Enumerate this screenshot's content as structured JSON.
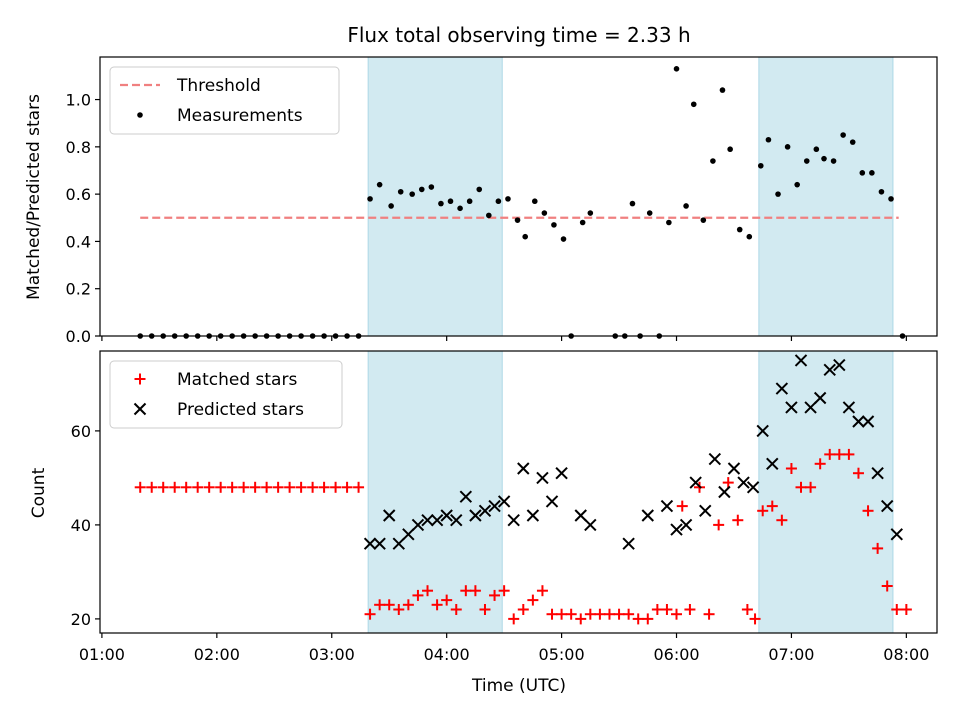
{
  "title": "Flux total observing time = 2.33 h",
  "xlabel": "Time (UTC)",
  "x_tick_labels": [
    "01:00",
    "02:00",
    "03:00",
    "04:00",
    "05:00",
    "06:00",
    "07:00",
    "08:00"
  ],
  "colors": {
    "threshold": "#f08080",
    "measurements": "#000000",
    "matched": "#ff0000",
    "predicted": "#000000",
    "highlight": "#add8e6"
  },
  "chart_data": [
    {
      "type": "scatter",
      "ylabel": "Matched/Predicted stars",
      "xlim": [
        "00:59",
        "08:16"
      ],
      "ylim": [
        0,
        1.18
      ],
      "y_ticks": [
        "0.0",
        "0.2",
        "0.4",
        "0.6",
        "0.8",
        "1.0"
      ],
      "legend": {
        "placement": "top-left",
        "entries": [
          "Threshold",
          "Measurements"
        ]
      },
      "highlight_spans": [
        [
          "03:19",
          "04:29"
        ],
        [
          "06:43",
          "07:53"
        ]
      ],
      "threshold": {
        "name": "Threshold",
        "y": 0.5,
        "x_range": [
          "01:20",
          "07:56"
        ]
      },
      "series": [
        {
          "name": "Measurements",
          "points": [
            [
              "01:20",
              0
            ],
            [
              "01:26",
              0
            ],
            [
              "01:32",
              0
            ],
            [
              "01:38",
              0
            ],
            [
              "01:44",
              0
            ],
            [
              "01:50",
              0
            ],
            [
              "01:56",
              0
            ],
            [
              "02:02",
              0
            ],
            [
              "02:08",
              0
            ],
            [
              "02:14",
              0
            ],
            [
              "02:20",
              0
            ],
            [
              "02:26",
              0
            ],
            [
              "02:32",
              0
            ],
            [
              "02:38",
              0
            ],
            [
              "02:44",
              0
            ],
            [
              "02:50",
              0
            ],
            [
              "02:56",
              0
            ],
            [
              "03:02",
              0
            ],
            [
              "03:08",
              0
            ],
            [
              "03:14",
              0
            ],
            [
              "03:20",
              0.58
            ],
            [
              "03:25",
              0.64
            ],
            [
              "03:31",
              0.55
            ],
            [
              "03:36",
              0.61
            ],
            [
              "03:42",
              0.6
            ],
            [
              "03:47",
              0.62
            ],
            [
              "03:52",
              0.63
            ],
            [
              "03:57",
              0.56
            ],
            [
              "04:02",
              0.57
            ],
            [
              "04:07",
              0.54
            ],
            [
              "04:12",
              0.57
            ],
            [
              "04:17",
              0.62
            ],
            [
              "04:22",
              0.51
            ],
            [
              "04:27",
              0.57
            ],
            [
              "04:32",
              0.58
            ],
            [
              "04:37",
              0.49
            ],
            [
              "04:41",
              0.42
            ],
            [
              "04:46",
              0.57
            ],
            [
              "04:51",
              0.52
            ],
            [
              "04:56",
              0.47
            ],
            [
              "05:01",
              0.41
            ],
            [
              "05:05",
              0.0
            ],
            [
              "05:11",
              0.48
            ],
            [
              "05:15",
              0.52
            ],
            [
              "05:28",
              0.0
            ],
            [
              "05:33",
              0.0
            ],
            [
              "05:37",
              0.56
            ],
            [
              "05:41",
              0.0
            ],
            [
              "05:46",
              0.52
            ],
            [
              "05:51",
              0.0
            ],
            [
              "05:56",
              0.48
            ],
            [
              "06:00",
              1.13
            ],
            [
              "06:05",
              0.55
            ],
            [
              "06:09",
              0.98
            ],
            [
              "06:14",
              0.49
            ],
            [
              "06:19",
              0.74
            ],
            [
              "06:24",
              1.04
            ],
            [
              "06:28",
              0.79
            ],
            [
              "06:33",
              0.45
            ],
            [
              "06:38",
              0.42
            ],
            [
              "06:44",
              0.72
            ],
            [
              "06:48",
              0.83
            ],
            [
              "06:53",
              0.6
            ],
            [
              "06:58",
              0.8
            ],
            [
              "07:03",
              0.64
            ],
            [
              "07:08",
              0.74
            ],
            [
              "07:13",
              0.79
            ],
            [
              "07:17",
              0.75
            ],
            [
              "07:22",
              0.74
            ],
            [
              "07:27",
              0.85
            ],
            [
              "07:32",
              0.82
            ],
            [
              "07:37",
              0.69
            ],
            [
              "07:42",
              0.69
            ],
            [
              "07:47",
              0.61
            ],
            [
              "07:52",
              0.58
            ],
            [
              "07:58",
              0.0
            ]
          ]
        }
      ]
    },
    {
      "type": "scatter",
      "ylabel": "Count",
      "xlim": [
        "00:59",
        "08:16"
      ],
      "ylim": [
        17,
        77
      ],
      "y_ticks": [
        "20",
        "40",
        "60"
      ],
      "legend": {
        "placement": "top-left",
        "entries": [
          "Matched stars",
          "Predicted stars"
        ]
      },
      "highlight_spans": [
        [
          "03:19",
          "04:29"
        ],
        [
          "06:43",
          "07:53"
        ]
      ],
      "series": [
        {
          "name": "Matched stars",
          "marker": "plus",
          "points": [
            [
              "01:20",
              48
            ],
            [
              "01:26",
              48
            ],
            [
              "01:32",
              48
            ],
            [
              "01:38",
              48
            ],
            [
              "01:44",
              48
            ],
            [
              "01:50",
              48
            ],
            [
              "01:56",
              48
            ],
            [
              "02:02",
              48
            ],
            [
              "02:08",
              48
            ],
            [
              "02:14",
              48
            ],
            [
              "02:20",
              48
            ],
            [
              "02:26",
              48
            ],
            [
              "02:32",
              48
            ],
            [
              "02:38",
              48
            ],
            [
              "02:44",
              48
            ],
            [
              "02:50",
              48
            ],
            [
              "02:56",
              48
            ],
            [
              "03:02",
              48
            ],
            [
              "03:08",
              48
            ],
            [
              "03:14",
              48
            ],
            [
              "03:20",
              21
            ],
            [
              "03:25",
              23
            ],
            [
              "03:30",
              23
            ],
            [
              "03:35",
              22
            ],
            [
              "03:40",
              23
            ],
            [
              "03:45",
              25
            ],
            [
              "03:50",
              26
            ],
            [
              "03:55",
              23
            ],
            [
              "04:00",
              24
            ],
            [
              "04:05",
              22
            ],
            [
              "04:10",
              26
            ],
            [
              "04:15",
              26
            ],
            [
              "04:20",
              22
            ],
            [
              "04:25",
              25
            ],
            [
              "04:30",
              26
            ],
            [
              "04:35",
              20
            ],
            [
              "04:40",
              22
            ],
            [
              "04:45",
              24
            ],
            [
              "04:50",
              26
            ],
            [
              "04:55",
              21
            ],
            [
              "05:00",
              21
            ],
            [
              "05:05",
              21
            ],
            [
              "05:10",
              20
            ],
            [
              "05:15",
              21
            ],
            [
              "05:20",
              21
            ],
            [
              "05:25",
              21
            ],
            [
              "05:30",
              21
            ],
            [
              "05:35",
              21
            ],
            [
              "05:40",
              20
            ],
            [
              "05:45",
              20
            ],
            [
              "05:50",
              22
            ],
            [
              "05:55",
              22
            ],
            [
              "06:00",
              21
            ],
            [
              "06:03",
              44
            ],
            [
              "06:07",
              22
            ],
            [
              "06:12",
              48
            ],
            [
              "06:17",
              21
            ],
            [
              "06:22",
              40
            ],
            [
              "06:27",
              49
            ],
            [
              "06:32",
              41
            ],
            [
              "06:37",
              22
            ],
            [
              "06:41",
              20
            ],
            [
              "06:45",
              43
            ],
            [
              "06:50",
              44
            ],
            [
              "06:55",
              41
            ],
            [
              "07:00",
              52
            ],
            [
              "07:05",
              48
            ],
            [
              "07:10",
              48
            ],
            [
              "07:15",
              53
            ],
            [
              "07:20",
              55
            ],
            [
              "07:25",
              55
            ],
            [
              "07:30",
              55
            ],
            [
              "07:35",
              51
            ],
            [
              "07:40",
              43
            ],
            [
              "07:45",
              35
            ],
            [
              "07:50",
              27
            ],
            [
              "07:55",
              22
            ],
            [
              "08:00",
              22
            ]
          ]
        },
        {
          "name": "Predicted stars",
          "marker": "x",
          "points": [
            [
              "03:20",
              36
            ],
            [
              "03:25",
              36
            ],
            [
              "03:30",
              42
            ],
            [
              "03:35",
              36
            ],
            [
              "03:40",
              38
            ],
            [
              "03:45",
              40
            ],
            [
              "03:50",
              41
            ],
            [
              "03:55",
              41
            ],
            [
              "04:00",
              42
            ],
            [
              "04:05",
              41
            ],
            [
              "04:10",
              46
            ],
            [
              "04:15",
              42
            ],
            [
              "04:20",
              43
            ],
            [
              "04:25",
              44
            ],
            [
              "04:30",
              45
            ],
            [
              "04:35",
              41
            ],
            [
              "04:40",
              52
            ],
            [
              "04:45",
              42
            ],
            [
              "04:50",
              50
            ],
            [
              "04:55",
              45
            ],
            [
              "05:00",
              51
            ],
            [
              "05:10",
              42
            ],
            [
              "05:15",
              40
            ],
            [
              "05:35",
              36
            ],
            [
              "05:45",
              42
            ],
            [
              "05:55",
              44
            ],
            [
              "06:00",
              39
            ],
            [
              "06:05",
              40
            ],
            [
              "06:10",
              49
            ],
            [
              "06:15",
              43
            ],
            [
              "06:20",
              54
            ],
            [
              "06:25",
              47
            ],
            [
              "06:30",
              52
            ],
            [
              "06:35",
              49
            ],
            [
              "06:40",
              48
            ],
            [
              "06:45",
              60
            ],
            [
              "06:50",
              53
            ],
            [
              "06:55",
              69
            ],
            [
              "07:00",
              65
            ],
            [
              "07:05",
              75
            ],
            [
              "07:10",
              65
            ],
            [
              "07:15",
              67
            ],
            [
              "07:20",
              73
            ],
            [
              "07:25",
              74
            ],
            [
              "07:30",
              65
            ],
            [
              "07:35",
              62
            ],
            [
              "07:40",
              62
            ],
            [
              "07:45",
              51
            ],
            [
              "07:50",
              44
            ],
            [
              "07:55",
              38
            ]
          ]
        }
      ]
    }
  ]
}
